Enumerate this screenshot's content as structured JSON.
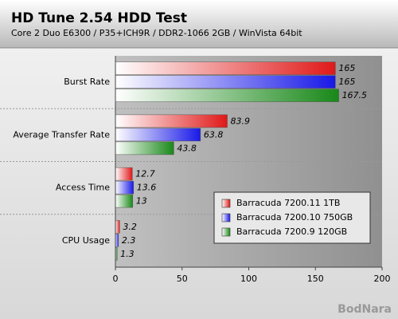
{
  "chart_data": {
    "type": "bar",
    "orientation": "horizontal",
    "title": "HD Tune 2.54 HDD Test",
    "subtitle": "Core 2 Duo E6300 / P35+ICH9R / DDR2-1066 2GB / WinVista 64bit",
    "watermark": "BodNara",
    "categories": [
      "Burst Rate",
      "Average Transfer Rate",
      "Access Time",
      "CPU Usage"
    ],
    "series": [
      {
        "name": "Barracuda 7200.11 1TB",
        "color": "#e01818",
        "values": [
          165,
          83.9,
          12.7,
          3.2
        ]
      },
      {
        "name": "Barracuda 7200.10 750GB",
        "color": "#1818e8",
        "values": [
          165,
          63.8,
          13.6,
          2.3
        ]
      },
      {
        "name": "Barracuda 7200.9 120GB",
        "color": "#188818",
        "values": [
          167.5,
          43.8,
          13,
          1.3
        ]
      }
    ],
    "xlim": [
      0,
      200
    ],
    "xticks": [
      0,
      50,
      100,
      150,
      200
    ],
    "legend": "lower right"
  }
}
